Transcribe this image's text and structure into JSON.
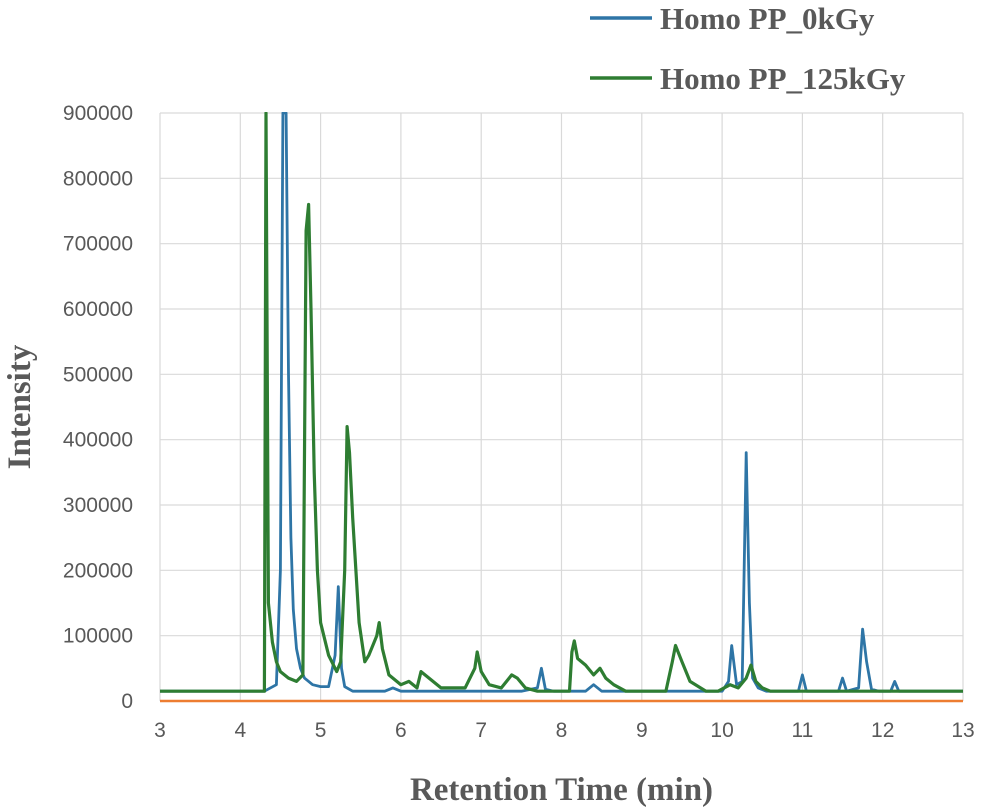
{
  "chart_data": {
    "type": "line",
    "xlabel": "Retention Time (min)",
    "ylabel": "Intensity",
    "xlim": [
      3,
      13
    ],
    "ylim": [
      0,
      900000
    ],
    "xticks": [
      "3",
      "4",
      "5",
      "6",
      "7",
      "8",
      "9",
      "10",
      "11",
      "12",
      "13"
    ],
    "yticks": [
      "0",
      "100000",
      "200000",
      "300000",
      "400000",
      "500000",
      "600000",
      "700000",
      "800000",
      "900000"
    ],
    "grid": true,
    "legend_position": "top-right",
    "baseline_color": "#ed7d31",
    "series": [
      {
        "name": "Homo PP_0kGy",
        "color": "#2e75a6",
        "x": [
          3.0,
          4.3,
          4.45,
          4.5,
          4.53,
          4.57,
          4.6,
          4.63,
          4.66,
          4.7,
          4.75,
          4.8,
          4.9,
          5.0,
          5.1,
          5.18,
          5.22,
          5.26,
          5.3,
          5.4,
          5.8,
          5.9,
          6.0,
          7.5,
          7.7,
          7.75,
          7.8,
          7.9,
          8.3,
          8.4,
          8.5,
          8.7,
          10.0,
          10.08,
          10.12,
          10.18,
          10.25,
          10.3,
          10.34,
          10.38,
          10.45,
          10.55,
          10.95,
          11.0,
          11.05,
          11.45,
          11.5,
          11.55,
          11.7,
          11.75,
          11.8,
          11.86,
          11.95,
          12.1,
          12.15,
          12.2,
          13.0
        ],
        "values": [
          15000,
          15000,
          25000,
          200000,
          900000,
          900000,
          500000,
          250000,
          140000,
          80000,
          50000,
          35000,
          25000,
          22000,
          22000,
          70000,
          175000,
          50000,
          22000,
          15000,
          15000,
          20000,
          15000,
          15000,
          20000,
          50000,
          18000,
          15000,
          15000,
          25000,
          15000,
          15000,
          15000,
          30000,
          85000,
          25000,
          30000,
          380000,
          150000,
          35000,
          20000,
          15000,
          15000,
          40000,
          15000,
          15000,
          35000,
          15000,
          20000,
          110000,
          60000,
          18000,
          15000,
          15000,
          30000,
          15000,
          15000
        ]
      },
      {
        "name": "Homo PP_125kGy",
        "color": "#2e7d32",
        "x": [
          3.0,
          4.3,
          4.32,
          4.35,
          4.4,
          4.45,
          4.5,
          4.6,
          4.7,
          4.78,
          4.82,
          4.85,
          4.88,
          4.92,
          4.96,
          5.0,
          5.1,
          5.2,
          5.25,
          5.3,
          5.33,
          5.36,
          5.4,
          5.48,
          5.55,
          5.6,
          5.7,
          5.73,
          5.77,
          5.85,
          6.0,
          6.1,
          6.2,
          6.25,
          6.35,
          6.5,
          6.8,
          6.92,
          6.95,
          7.0,
          7.1,
          7.25,
          7.38,
          7.45,
          7.55,
          7.7,
          8.1,
          8.13,
          8.16,
          8.2,
          8.3,
          8.4,
          8.48,
          8.55,
          8.65,
          8.8,
          9.3,
          9.38,
          9.42,
          9.5,
          9.6,
          9.8,
          9.95,
          10.1,
          10.2,
          10.3,
          10.36,
          10.42,
          10.5,
          10.6,
          13.0
        ],
        "values": [
          15000,
          15000,
          900000,
          150000,
          90000,
          60000,
          45000,
          35000,
          30000,
          40000,
          720000,
          760000,
          600000,
          350000,
          200000,
          120000,
          70000,
          45000,
          60000,
          200000,
          420000,
          380000,
          280000,
          120000,
          60000,
          70000,
          100000,
          120000,
          80000,
          40000,
          25000,
          30000,
          20000,
          45000,
          35000,
          20000,
          20000,
          50000,
          75000,
          45000,
          25000,
          20000,
          40000,
          35000,
          20000,
          15000,
          15000,
          75000,
          92000,
          65000,
          55000,
          40000,
          50000,
          35000,
          25000,
          15000,
          15000,
          60000,
          85000,
          60000,
          30000,
          15000,
          15000,
          25000,
          20000,
          35000,
          55000,
          30000,
          20000,
          15000,
          15000
        ]
      }
    ]
  }
}
